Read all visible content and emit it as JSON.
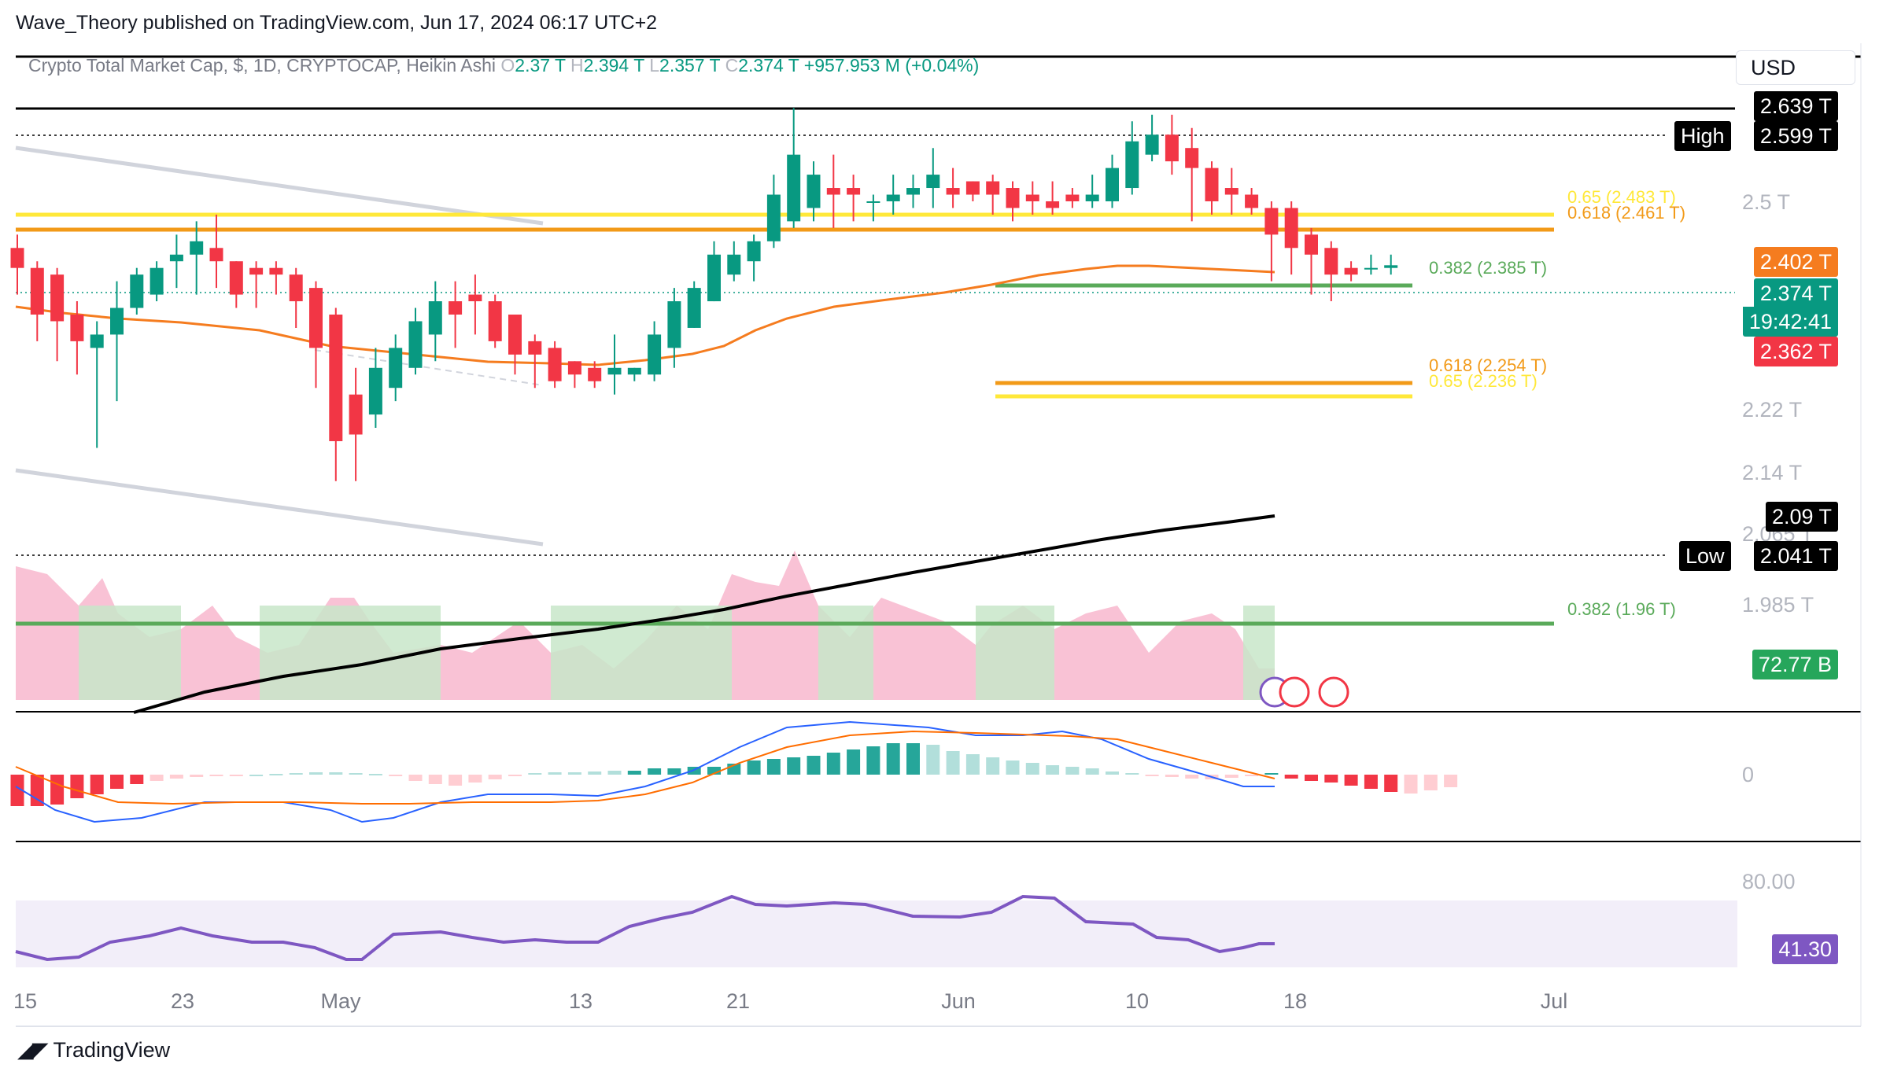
{
  "header": {
    "publisher": "Wave_Theory published on TradingView.com, Jun 17, 2024 06:17 UTC+2"
  },
  "legend": {
    "symbol": "Crypto Total Market Cap, $, 1D, CRYPTOCAP, Heikin Ashi",
    "o_key": "O",
    "o_val": "2.37 T",
    "h_key": "H",
    "h_val": "2.394 T",
    "l_key": "L",
    "l_val": "2.357 T",
    "c_key": "C",
    "c_val": "2.374 T",
    "change": "+957.953 M (+0.04%)"
  },
  "currency": "USD",
  "colors": {
    "up": "#089981",
    "down": "#f23645",
    "ma_orange": "#f57c1f",
    "ma_black": "#000000",
    "fib_yellow": "#ffe839",
    "fib_orange": "#f29a18",
    "fib_green": "#5aaa5a",
    "macd_line": "#2962ff",
    "signal_line": "#ff6d00",
    "rsi": "#7e57c2",
    "rsi_band": "#ede7f6",
    "vol_up": "#c8e6c9",
    "vol_down": "#f8bbd0"
  },
  "axis": {
    "price_ticks": [
      "2.5 T",
      "2.22 T",
      "2.14 T",
      "2.065 T",
      "1.985 T"
    ],
    "macd_zero": "0",
    "rsi_80": "80.00"
  },
  "price_tags": {
    "top": "2.639 T",
    "high_label": "High",
    "high": "2.599 T",
    "ma50": "2.402 T",
    "last": "2.374 T",
    "countdown": "19:42:41",
    "prev": "2.362 T",
    "ma200": "2.09 T",
    "low_label": "Low",
    "low": "2.041 T",
    "volume": "72.77 B",
    "rsi": "41.30"
  },
  "fibs": {
    "f065_top": "0.65 (2.483 T)",
    "f0618_top": "0.618 (2.461 T)",
    "f0382_mid": "0.382 (2.385 T)",
    "f0618_low": "0.618 (2.254 T)",
    "f065_low": "0.65 (2.236 T)",
    "f0382_bottom": "0.382 (1.96 T)"
  },
  "x_axis": {
    "ticks": [
      "15",
      "23",
      "May",
      "13",
      "21",
      "Jun",
      "10",
      "18",
      "Jul"
    ]
  },
  "brand": "TradingView",
  "chart_data": {
    "type": "candlestick",
    "style": "Heikin Ashi",
    "interval": "1D",
    "title": "Crypto Total Market Cap, $, 1D, CRYPTOCAP, Heikin Ashi",
    "ylim": [
      1.94,
      2.66
    ],
    "grid": false,
    "candles": [
      {
        "date": "2024-04-15",
        "o": 2.4,
        "h": 2.42,
        "l": 2.33,
        "c": 2.37
      },
      {
        "date": "2024-04-16",
        "o": 2.37,
        "h": 2.38,
        "l": 2.26,
        "c": 2.3
      },
      {
        "date": "2024-04-17",
        "o": 2.36,
        "h": 2.37,
        "l": 2.23,
        "c": 2.29
      },
      {
        "date": "2024-04-18",
        "o": 2.3,
        "h": 2.32,
        "l": 2.21,
        "c": 2.26
      },
      {
        "date": "2024-04-19",
        "o": 2.25,
        "h": 2.29,
        "l": 2.1,
        "c": 2.27
      },
      {
        "date": "2024-04-20",
        "o": 2.27,
        "h": 2.35,
        "l": 2.17,
        "c": 2.31
      },
      {
        "date": "2024-04-21",
        "o": 2.31,
        "h": 2.37,
        "l": 2.3,
        "c": 2.36
      },
      {
        "date": "2024-04-22",
        "o": 2.33,
        "h": 2.38,
        "l": 2.32,
        "c": 2.37
      },
      {
        "date": "2024-04-23",
        "o": 2.38,
        "h": 2.42,
        "l": 2.34,
        "c": 2.39
      },
      {
        "date": "2024-04-24",
        "o": 2.39,
        "h": 2.44,
        "l": 2.33,
        "c": 2.41
      },
      {
        "date": "2024-04-25",
        "o": 2.4,
        "h": 2.45,
        "l": 2.34,
        "c": 2.38
      },
      {
        "date": "2024-04-26",
        "o": 2.38,
        "h": 2.38,
        "l": 2.31,
        "c": 2.33
      },
      {
        "date": "2024-04-27",
        "o": 2.37,
        "h": 2.38,
        "l": 2.31,
        "c": 2.36
      },
      {
        "date": "2024-04-28",
        "o": 2.37,
        "h": 2.38,
        "l": 2.33,
        "c": 2.36
      },
      {
        "date": "2024-04-29",
        "o": 2.36,
        "h": 2.37,
        "l": 2.28,
        "c": 2.32
      },
      {
        "date": "2024-04-30",
        "o": 2.34,
        "h": 2.35,
        "l": 2.19,
        "c": 2.25
      },
      {
        "date": "2024-05-01",
        "o": 2.3,
        "h": 2.31,
        "l": 2.05,
        "c": 2.11
      },
      {
        "date": "2024-05-02",
        "o": 2.18,
        "h": 2.22,
        "l": 2.05,
        "c": 2.12
      },
      {
        "date": "2024-05-03",
        "o": 2.15,
        "h": 2.25,
        "l": 2.13,
        "c": 2.22
      },
      {
        "date": "2024-05-04",
        "o": 2.19,
        "h": 2.27,
        "l": 2.17,
        "c": 2.25
      },
      {
        "date": "2024-05-05",
        "o": 2.22,
        "h": 2.31,
        "l": 2.21,
        "c": 2.29
      },
      {
        "date": "2024-05-06",
        "o": 2.27,
        "h": 2.35,
        "l": 2.23,
        "c": 2.32
      },
      {
        "date": "2024-05-07",
        "o": 2.32,
        "h": 2.35,
        "l": 2.25,
        "c": 2.3
      },
      {
        "date": "2024-05-08",
        "o": 2.33,
        "h": 2.36,
        "l": 2.27,
        "c": 2.32
      },
      {
        "date": "2024-05-09",
        "o": 2.32,
        "h": 2.33,
        "l": 2.25,
        "c": 2.26
      },
      {
        "date": "2024-05-10",
        "o": 2.3,
        "h": 2.3,
        "l": 2.21,
        "c": 2.24
      },
      {
        "date": "2024-05-11",
        "o": 2.26,
        "h": 2.27,
        "l": 2.19,
        "c": 2.24
      },
      {
        "date": "2024-05-12",
        "o": 2.25,
        "h": 2.26,
        "l": 2.19,
        "c": 2.2
      },
      {
        "date": "2024-05-13",
        "o": 2.23,
        "h": 2.23,
        "l": 2.19,
        "c": 2.21
      },
      {
        "date": "2024-05-14",
        "o": 2.22,
        "h": 2.23,
        "l": 2.19,
        "c": 2.2
      },
      {
        "date": "2024-05-15",
        "o": 2.21,
        "h": 2.27,
        "l": 2.18,
        "c": 2.22
      },
      {
        "date": "2024-05-16",
        "o": 2.21,
        "h": 2.22,
        "l": 2.2,
        "c": 2.22
      },
      {
        "date": "2024-05-17",
        "o": 2.21,
        "h": 2.29,
        "l": 2.2,
        "c": 2.27
      },
      {
        "date": "2024-05-18",
        "o": 2.25,
        "h": 2.34,
        "l": 2.22,
        "c": 2.32
      },
      {
        "date": "2024-05-19",
        "o": 2.28,
        "h": 2.35,
        "l": 2.28,
        "c": 2.34
      },
      {
        "date": "2024-05-20",
        "o": 2.32,
        "h": 2.41,
        "l": 2.32,
        "c": 2.39
      },
      {
        "date": "2024-05-21",
        "o": 2.36,
        "h": 2.41,
        "l": 2.35,
        "c": 2.39
      },
      {
        "date": "2024-05-22",
        "o": 2.38,
        "h": 2.42,
        "l": 2.35,
        "c": 2.41
      },
      {
        "date": "2024-05-23",
        "o": 2.41,
        "h": 2.51,
        "l": 2.4,
        "c": 2.48
      },
      {
        "date": "2024-05-24",
        "o": 2.44,
        "h": 2.61,
        "l": 2.43,
        "c": 2.54
      },
      {
        "date": "2024-05-25",
        "o": 2.46,
        "h": 2.53,
        "l": 2.44,
        "c": 2.51
      },
      {
        "date": "2024-05-26",
        "o": 2.49,
        "h": 2.54,
        "l": 2.43,
        "c": 2.48
      },
      {
        "date": "2024-05-27",
        "o": 2.49,
        "h": 2.51,
        "l": 2.44,
        "c": 2.48
      },
      {
        "date": "2024-05-28",
        "o": 2.47,
        "h": 2.48,
        "l": 2.44,
        "c": 2.47
      },
      {
        "date": "2024-05-29",
        "o": 2.47,
        "h": 2.51,
        "l": 2.45,
        "c": 2.48
      },
      {
        "date": "2024-05-30",
        "o": 2.48,
        "h": 2.51,
        "l": 2.46,
        "c": 2.49
      },
      {
        "date": "2024-05-31",
        "o": 2.49,
        "h": 2.55,
        "l": 2.46,
        "c": 2.51
      },
      {
        "date": "2024-06-01",
        "o": 2.49,
        "h": 2.52,
        "l": 2.46,
        "c": 2.48
      },
      {
        "date": "2024-06-02",
        "o": 2.5,
        "h": 2.5,
        "l": 2.47,
        "c": 2.48
      },
      {
        "date": "2024-06-03",
        "o": 2.5,
        "h": 2.51,
        "l": 2.45,
        "c": 2.48
      },
      {
        "date": "2024-06-04",
        "o": 2.49,
        "h": 2.5,
        "l": 2.44,
        "c": 2.46
      },
      {
        "date": "2024-06-05",
        "o": 2.48,
        "h": 2.5,
        "l": 2.45,
        "c": 2.47
      },
      {
        "date": "2024-06-06",
        "o": 2.47,
        "h": 2.5,
        "l": 2.45,
        "c": 2.46
      },
      {
        "date": "2024-06-07",
        "o": 2.48,
        "h": 2.49,
        "l": 2.46,
        "c": 2.47
      },
      {
        "date": "2024-06-08",
        "o": 2.47,
        "h": 2.51,
        "l": 2.46,
        "c": 2.48
      },
      {
        "date": "2024-06-09",
        "o": 2.47,
        "h": 2.54,
        "l": 2.46,
        "c": 2.52
      },
      {
        "date": "2024-06-10",
        "o": 2.49,
        "h": 2.59,
        "l": 2.48,
        "c": 2.56
      },
      {
        "date": "2024-06-11",
        "o": 2.54,
        "h": 2.6,
        "l": 2.53,
        "c": 2.57
      },
      {
        "date": "2024-06-12",
        "o": 2.57,
        "h": 2.6,
        "l": 2.51,
        "c": 2.53
      },
      {
        "date": "2024-06-13",
        "o": 2.55,
        "h": 2.58,
        "l": 2.44,
        "c": 2.52
      },
      {
        "date": "2024-06-14",
        "o": 2.52,
        "h": 2.53,
        "l": 2.45,
        "c": 2.47
      },
      {
        "date": "2024-06-15",
        "o": 2.49,
        "h": 2.52,
        "l": 2.45,
        "c": 2.48
      },
      {
        "date": "2024-06-16",
        "o": 2.48,
        "h": 2.49,
        "l": 2.45,
        "c": 2.46
      },
      {
        "date": "2024-06-17",
        "o": 2.46,
        "h": 2.47,
        "l": 2.35,
        "c": 2.42
      },
      {
        "date": "2024-06-18",
        "o": 2.46,
        "h": 2.47,
        "l": 2.36,
        "c": 2.4
      },
      {
        "date": "2024-06-19",
        "o": 2.42,
        "h": 2.43,
        "l": 2.33,
        "c": 2.39
      },
      {
        "date": "2024-06-20",
        "o": 2.4,
        "h": 2.41,
        "l": 2.32,
        "c": 2.36
      },
      {
        "date": "2024-06-21",
        "o": 2.37,
        "h": 2.38,
        "l": 2.35,
        "c": 2.36
      },
      {
        "date": "2024-06-22",
        "o": 2.37,
        "h": 2.39,
        "l": 2.36,
        "c": 2.37
      },
      {
        "date": "2024-06-23",
        "o": 2.37,
        "h": 2.39,
        "l": 2.36,
        "c": 2.374
      }
    ]
  }
}
